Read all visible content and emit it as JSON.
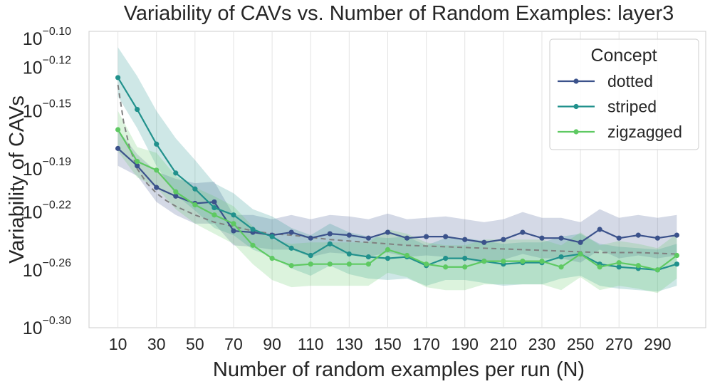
{
  "chart_data": {
    "type": "line",
    "title": "Variability of CAVs vs. Number of Random Examples: layer3",
    "xlabel": "Number of random examples per run (N)",
    "ylabel": "Variability of CAVs",
    "x": [
      10,
      20,
      30,
      40,
      50,
      60,
      70,
      80,
      90,
      100,
      110,
      120,
      130,
      140,
      150,
      160,
      170,
      180,
      190,
      200,
      210,
      220,
      230,
      240,
      250,
      260,
      270,
      280,
      290,
      300
    ],
    "xticks": [
      10,
      30,
      50,
      70,
      90,
      110,
      130,
      150,
      170,
      190,
      210,
      230,
      250,
      270,
      290
    ],
    "xlim": [
      -5,
      315
    ],
    "yscale": "log10",
    "ylim_log10": [
      -0.3,
      -0.095
    ],
    "yticks": [
      {
        "base": "10",
        "exp": "−0.10",
        "log": -0.1
      },
      {
        "base": "10",
        "exp": "−0.12",
        "log": -0.12
      },
      {
        "base": "10",
        "exp": "−0.15",
        "log": -0.15
      },
      {
        "base": "10",
        "exp": "−0.19",
        "log": -0.19
      },
      {
        "base": "10",
        "exp": "−0.22",
        "log": -0.22
      },
      {
        "base": "10",
        "exp": "−0.26",
        "log": -0.26
      },
      {
        "base": "10",
        "exp": "−0.30",
        "log": -0.3
      }
    ],
    "grid": true,
    "legend": {
      "title": "Concept",
      "position": "top-right"
    },
    "series": [
      {
        "name": "dotted",
        "color": "#3b528b",
        "values_log10": [
          -0.176,
          -0.188,
          -0.203,
          -0.209,
          -0.214,
          -0.213,
          -0.233,
          -0.234,
          -0.236,
          -0.234,
          -0.238,
          -0.235,
          -0.236,
          -0.238,
          -0.234,
          -0.238,
          -0.237,
          -0.237,
          -0.239,
          -0.241,
          -0.239,
          -0.234,
          -0.238,
          -0.238,
          -0.241,
          -0.232,
          -0.238,
          -0.236,
          -0.238,
          -0.236
        ],
        "band_low_log10": [
          -0.188,
          -0.195,
          -0.213,
          -0.222,
          -0.228,
          -0.228,
          -0.243,
          -0.244,
          -0.246,
          -0.246,
          -0.251,
          -0.248,
          -0.249,
          -0.251,
          -0.248,
          -0.251,
          -0.25,
          -0.251,
          -0.253,
          -0.255,
          -0.253,
          -0.249,
          -0.252,
          -0.252,
          -0.255,
          -0.246,
          -0.252,
          -0.25,
          -0.252,
          -0.25
        ],
        "band_high_log10": [
          -0.163,
          -0.18,
          -0.192,
          -0.197,
          -0.2,
          -0.199,
          -0.222,
          -0.222,
          -0.225,
          -0.222,
          -0.225,
          -0.222,
          -0.223,
          -0.225,
          -0.221,
          -0.225,
          -0.224,
          -0.223,
          -0.225,
          -0.227,
          -0.225,
          -0.22,
          -0.224,
          -0.224,
          -0.227,
          -0.218,
          -0.224,
          -0.222,
          -0.224,
          -0.222
        ]
      },
      {
        "name": "striped",
        "color": "#21918c",
        "values_log10": [
          -0.127,
          -0.149,
          -0.173,
          -0.193,
          -0.204,
          -0.217,
          -0.222,
          -0.232,
          -0.237,
          -0.245,
          -0.25,
          -0.242,
          -0.249,
          -0.251,
          -0.252,
          -0.251,
          -0.257,
          -0.252,
          -0.252,
          -0.254,
          -0.256,
          -0.255,
          -0.255,
          -0.251,
          -0.249,
          -0.256,
          -0.258,
          -0.259,
          -0.26,
          -0.256
        ],
        "band_low_log10": [
          -0.14,
          -0.162,
          -0.188,
          -0.208,
          -0.219,
          -0.231,
          -0.236,
          -0.246,
          -0.251,
          -0.259,
          -0.264,
          -0.257,
          -0.263,
          -0.266,
          -0.267,
          -0.266,
          -0.271,
          -0.267,
          -0.267,
          -0.269,
          -0.271,
          -0.27,
          -0.27,
          -0.266,
          -0.264,
          -0.271,
          -0.273,
          -0.274,
          -0.275,
          -0.271
        ],
        "band_high_log10": [
          -0.106,
          -0.126,
          -0.15,
          -0.169,
          -0.184,
          -0.2,
          -0.207,
          -0.218,
          -0.223,
          -0.231,
          -0.236,
          -0.228,
          -0.234,
          -0.237,
          -0.238,
          -0.237,
          -0.243,
          -0.238,
          -0.238,
          -0.24,
          -0.242,
          -0.241,
          -0.241,
          -0.237,
          -0.235,
          -0.242,
          -0.244,
          -0.245,
          -0.246,
          -0.242
        ]
      },
      {
        "name": "zigzagged",
        "color": "#5ec962",
        "values_log10": [
          -0.163,
          -0.185,
          -0.191,
          -0.206,
          -0.215,
          -0.222,
          -0.228,
          -0.243,
          -0.252,
          -0.257,
          -0.256,
          -0.256,
          -0.256,
          -0.256,
          -0.246,
          -0.25,
          -0.256,
          -0.258,
          -0.258,
          -0.254,
          -0.254,
          -0.254,
          -0.254,
          -0.258,
          -0.249,
          -0.258,
          -0.255,
          -0.257,
          -0.26,
          -0.25
        ],
        "band_low_log10": [
          -0.178,
          -0.196,
          -0.203,
          -0.218,
          -0.228,
          -0.235,
          -0.242,
          -0.256,
          -0.267,
          -0.272,
          -0.271,
          -0.271,
          -0.271,
          -0.271,
          -0.262,
          -0.265,
          -0.272,
          -0.274,
          -0.274,
          -0.27,
          -0.27,
          -0.27,
          -0.27,
          -0.274,
          -0.265,
          -0.274,
          -0.271,
          -0.273,
          -0.276,
          -0.266
        ],
        "band_high_log10": [
          -0.15,
          -0.175,
          -0.179,
          -0.195,
          -0.203,
          -0.209,
          -0.216,
          -0.23,
          -0.239,
          -0.242,
          -0.241,
          -0.241,
          -0.241,
          -0.241,
          -0.232,
          -0.235,
          -0.241,
          -0.243,
          -0.243,
          -0.239,
          -0.239,
          -0.239,
          -0.239,
          -0.243,
          -0.234,
          -0.243,
          -0.24,
          -0.242,
          -0.245,
          -0.235
        ]
      }
    ],
    "fit_curve": {
      "style": "dashed",
      "color": "#808080",
      "x": [
        10,
        13,
        16,
        20,
        25,
        30,
        35,
        40,
        50,
        60,
        70,
        80,
        90,
        100,
        120,
        140,
        160,
        180,
        200,
        220,
        240,
        260,
        280,
        300
      ],
      "values_log10": [
        -0.132,
        -0.158,
        -0.175,
        -0.19,
        -0.2,
        -0.207,
        -0.212,
        -0.216,
        -0.222,
        -0.227,
        -0.23,
        -0.233,
        -0.235,
        -0.236,
        -0.239,
        -0.241,
        -0.243,
        -0.244,
        -0.245,
        -0.246,
        -0.247,
        -0.248,
        -0.248,
        -0.249
      ]
    }
  }
}
